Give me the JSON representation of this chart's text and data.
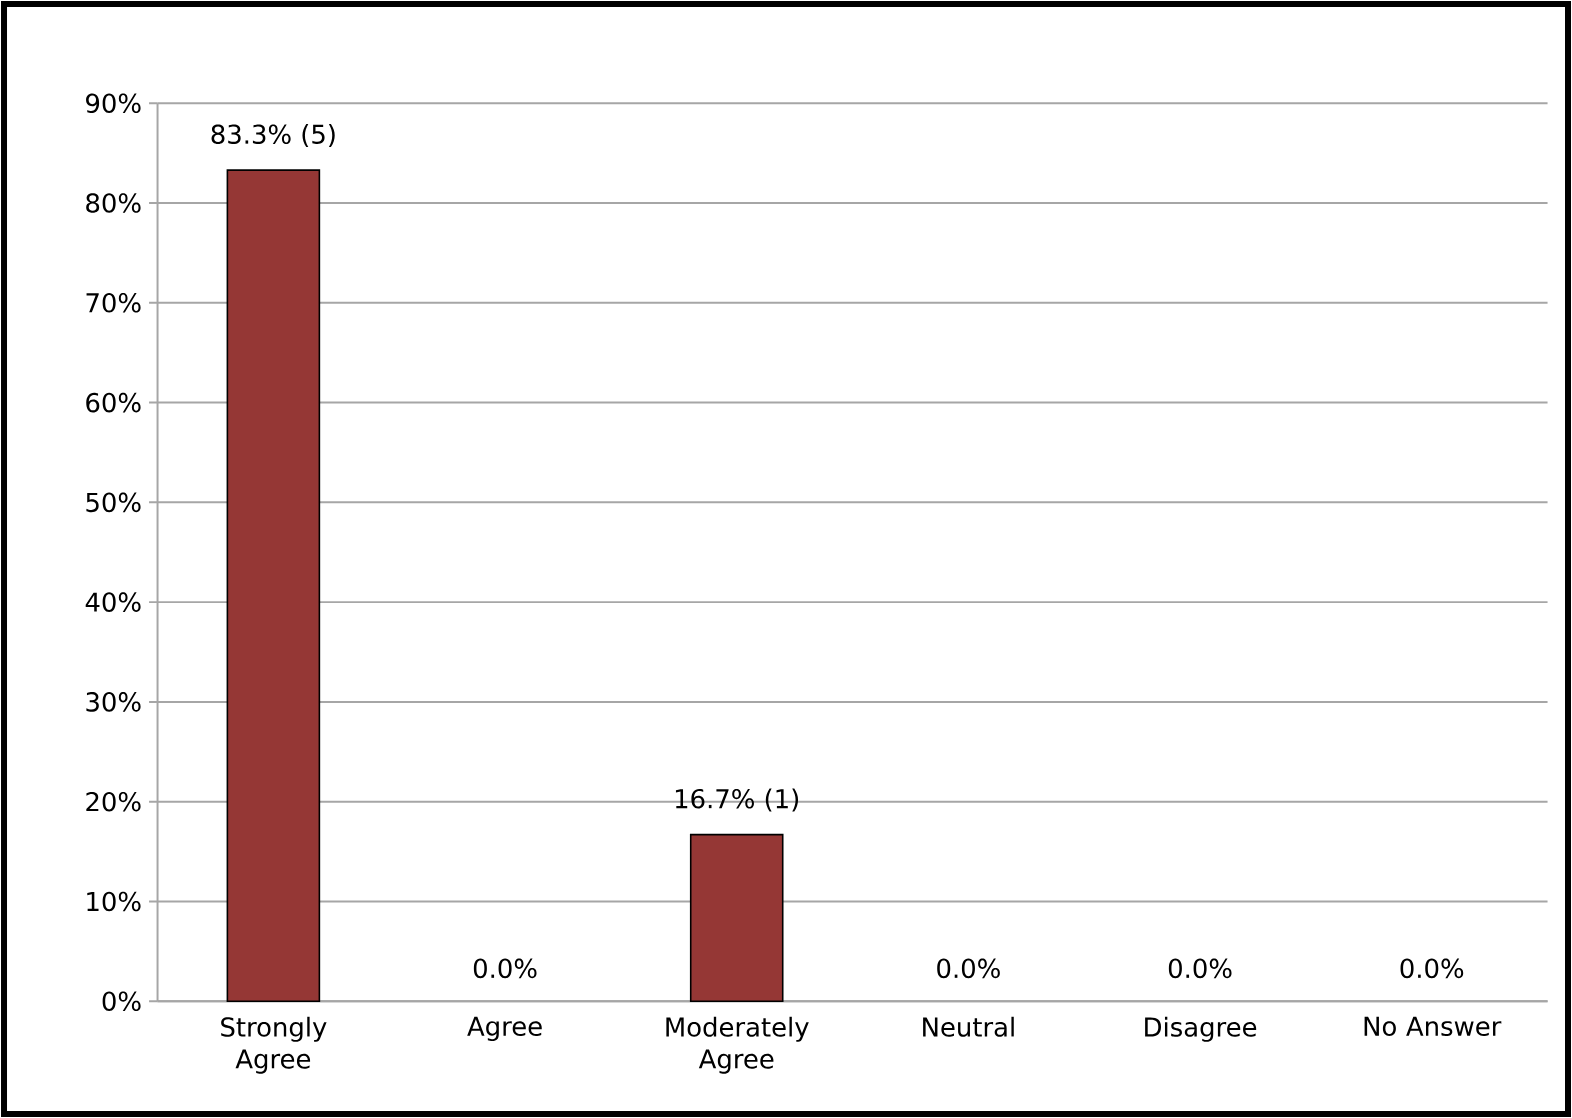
{
  "chart_data": {
    "type": "bar",
    "categories": [
      "Strongly Agree",
      "Agree",
      "Moderately Agree",
      "Neutral",
      "Disagree",
      "No Answer"
    ],
    "values": [
      83.3,
      0,
      16.7,
      0,
      0,
      0
    ],
    "value_labels": [
      "83.3% (5)",
      "0.0%",
      "16.7% (1)",
      "0.0%",
      "0.0%",
      "0.0%"
    ],
    "color": "#953735",
    "ylim": [
      0,
      90
    ],
    "yticks": [
      {
        "value": 0,
        "label": "0%"
      },
      {
        "value": 10,
        "label": "10%"
      },
      {
        "value": 20,
        "label": "20%"
      },
      {
        "value": 30,
        "label": "30%"
      },
      {
        "value": 40,
        "label": "40%"
      },
      {
        "value": 50,
        "label": "50%"
      },
      {
        "value": 60,
        "label": "60%"
      },
      {
        "value": 70,
        "label": "70%"
      },
      {
        "value": 80,
        "label": "80%"
      },
      {
        "value": 90,
        "label": "90%"
      }
    ],
    "grid": "y"
  }
}
